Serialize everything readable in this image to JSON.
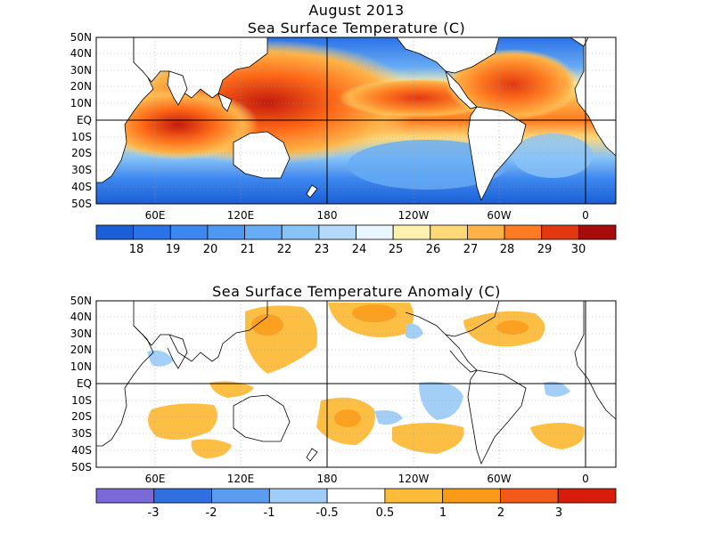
{
  "figure": {
    "date": "August 2013"
  },
  "panels": [
    {
      "title": "Sea Surface Temperature (C)",
      "lat_labels": [
        "50N",
        "40N",
        "30N",
        "20N",
        "10N",
        "EQ",
        "10S",
        "20S",
        "30S",
        "40S",
        "50S"
      ],
      "lon_labels": [
        "60E",
        "120E",
        "180",
        "120W",
        "60W",
        "0"
      ],
      "colorbar": {
        "labels": [
          "18",
          "19",
          "20",
          "21",
          "22",
          "23",
          "24",
          "25",
          "26",
          "27",
          "28",
          "29",
          "30"
        ],
        "colors": [
          "#1a5fd6",
          "#2a72e8",
          "#3c87f0",
          "#4f98f2",
          "#68acf5",
          "#89c4f7",
          "#b3dafa",
          "#e9f6ff",
          "#fff2b0",
          "#ffd978",
          "#ffb347",
          "#ff7a20",
          "#e23812",
          "#a60c0c"
        ]
      }
    },
    {
      "title": "Sea Surface Temperature Anomaly (C)",
      "lat_labels": [
        "50N",
        "40N",
        "30N",
        "20N",
        "10N",
        "EQ",
        "10S",
        "20S",
        "30S",
        "40S",
        "50S"
      ],
      "lon_labels": [
        "60E",
        "120E",
        "180",
        "120W",
        "60W",
        "0"
      ],
      "colorbar": {
        "labels": [
          "-3",
          "-2",
          "-1",
          "-0.5",
          "0.5",
          "1",
          "2",
          "3"
        ],
        "colors": [
          "#7b68d9",
          "#2f6fe0",
          "#5a9cf0",
          "#9fcdf7",
          "#ffffff",
          "#fdbb3a",
          "#fb9a17",
          "#f15a18",
          "#d81c0c"
        ]
      }
    }
  ]
}
